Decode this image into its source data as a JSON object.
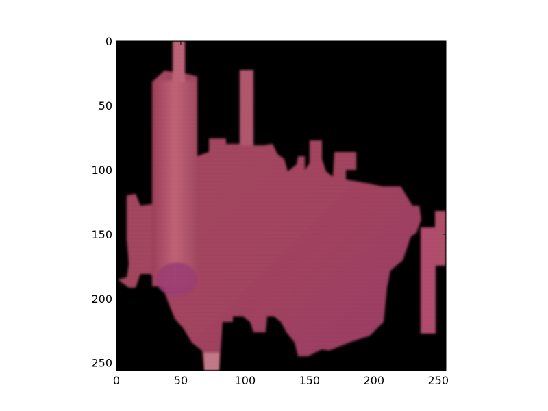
{
  "figure": {
    "background": "#ffffff"
  },
  "image": {
    "type": "raster",
    "description_colors": {
      "background": "#000000",
      "object_main": "#a8445e",
      "object_light": "#c46a80",
      "object_dark": "#8a3350",
      "object_purple": "#9a3d70"
    },
    "pixel_extent": {
      "x": [
        0,
        256
      ],
      "y": [
        0,
        256
      ]
    }
  },
  "chart_data": {
    "type": "heatmap",
    "title": "",
    "xlabel": "",
    "ylabel": "",
    "xlim": [
      0,
      256
    ],
    "ylim": [
      256,
      0
    ],
    "x_ticks": [
      0,
      50,
      100,
      150,
      200,
      250
    ],
    "y_ticks": [
      0,
      50,
      100,
      150,
      200,
      250
    ],
    "x_tick_labels": [
      "0",
      "50",
      "100",
      "150",
      "200",
      "250"
    ],
    "y_tick_labels": [
      "0",
      "50",
      "100",
      "150",
      "200",
      "250"
    ],
    "grid": false
  }
}
